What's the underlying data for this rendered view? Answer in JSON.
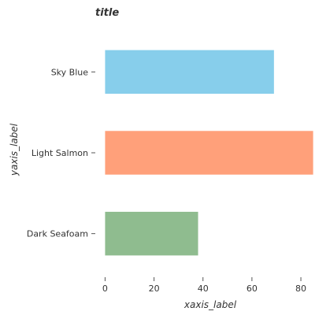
{
  "chart_data": {
    "type": "bar",
    "orientation": "horizontal",
    "title": "title",
    "xlabel": "xaxis_label",
    "ylabel": "yaxis_label",
    "categories": [
      "Dark Seafoam",
      "Light Salmon",
      "Sky Blue"
    ],
    "values": [
      38,
      85,
      69
    ],
    "colors": [
      "#8fbc8f",
      "#ffa07a",
      "#87ceeb"
    ],
    "xlim": [
      -4,
      89
    ],
    "xticks": [
      0,
      20,
      40,
      60,
      80
    ],
    "grid": false,
    "legend": "none"
  }
}
